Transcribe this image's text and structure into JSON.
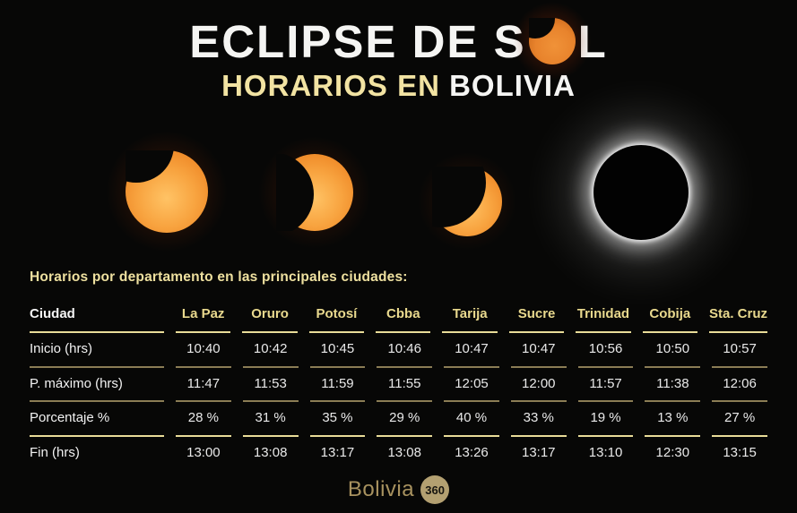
{
  "header": {
    "title_pre": "ECLIPSE DE S",
    "title_post": "L",
    "subtitle_highlight": "HORARIOS EN",
    "subtitle_rest": "BOLIVIA"
  },
  "phases": [
    {
      "name": "partial-eclipse-small-bite"
    },
    {
      "name": "partial-eclipse-half"
    },
    {
      "name": "thin-crescent-eclipse"
    },
    {
      "name": "total-eclipse-corona"
    }
  ],
  "section": {
    "heading": "Horarios por departamento en las principales ciudades:"
  },
  "chart_data": {
    "type": "table",
    "title": "Eclipse de Sol — Horarios en Bolivia",
    "corner_label": "Ciudad",
    "header_underline": "bright",
    "columns": [
      "La Paz",
      "Oruro",
      "Potosí",
      "Cbba",
      "Tarija",
      "Sucre",
      "Trinidad",
      "Cobija",
      "Sta. Cruz"
    ],
    "rows": [
      {
        "label": "Inicio (hrs)",
        "underline": "dark",
        "values": [
          "10:40",
          "10:42",
          "10:45",
          "10:46",
          "10:47",
          "10:47",
          "10:56",
          "10:50",
          "10:57"
        ]
      },
      {
        "label": "P. máximo (hrs)",
        "underline": "dark",
        "values": [
          "11:47",
          "11:53",
          "11:59",
          "11:55",
          "12:05",
          "12:00",
          "11:57",
          "11:38",
          "12:06"
        ]
      },
      {
        "label": "Porcentaje %",
        "underline": "bright",
        "values": [
          "28 %",
          "31 %",
          "35 %",
          "29 %",
          "40 %",
          "33 %",
          "19 %",
          "13 %",
          "27 %"
        ]
      },
      {
        "label": "Fin (hrs)",
        "underline": "none",
        "values": [
          "13:00",
          "13:08",
          "13:17",
          "13:08",
          "13:26",
          "13:17",
          "13:10",
          "12:30",
          "13:15"
        ]
      }
    ]
  },
  "footer": {
    "brand": "Bolivia",
    "badge": "360"
  },
  "colors": {
    "background": "#070706",
    "title_white": "#f5f5f3",
    "gold_text": "#f2e3a2",
    "city_gold": "#e9d98e",
    "line_bright": "#e9dc98",
    "line_dark": "#8b7d55",
    "sun_orange": "#e8832c",
    "phase_orange": "#f8a440",
    "footer_tan": "#a8925f"
  }
}
